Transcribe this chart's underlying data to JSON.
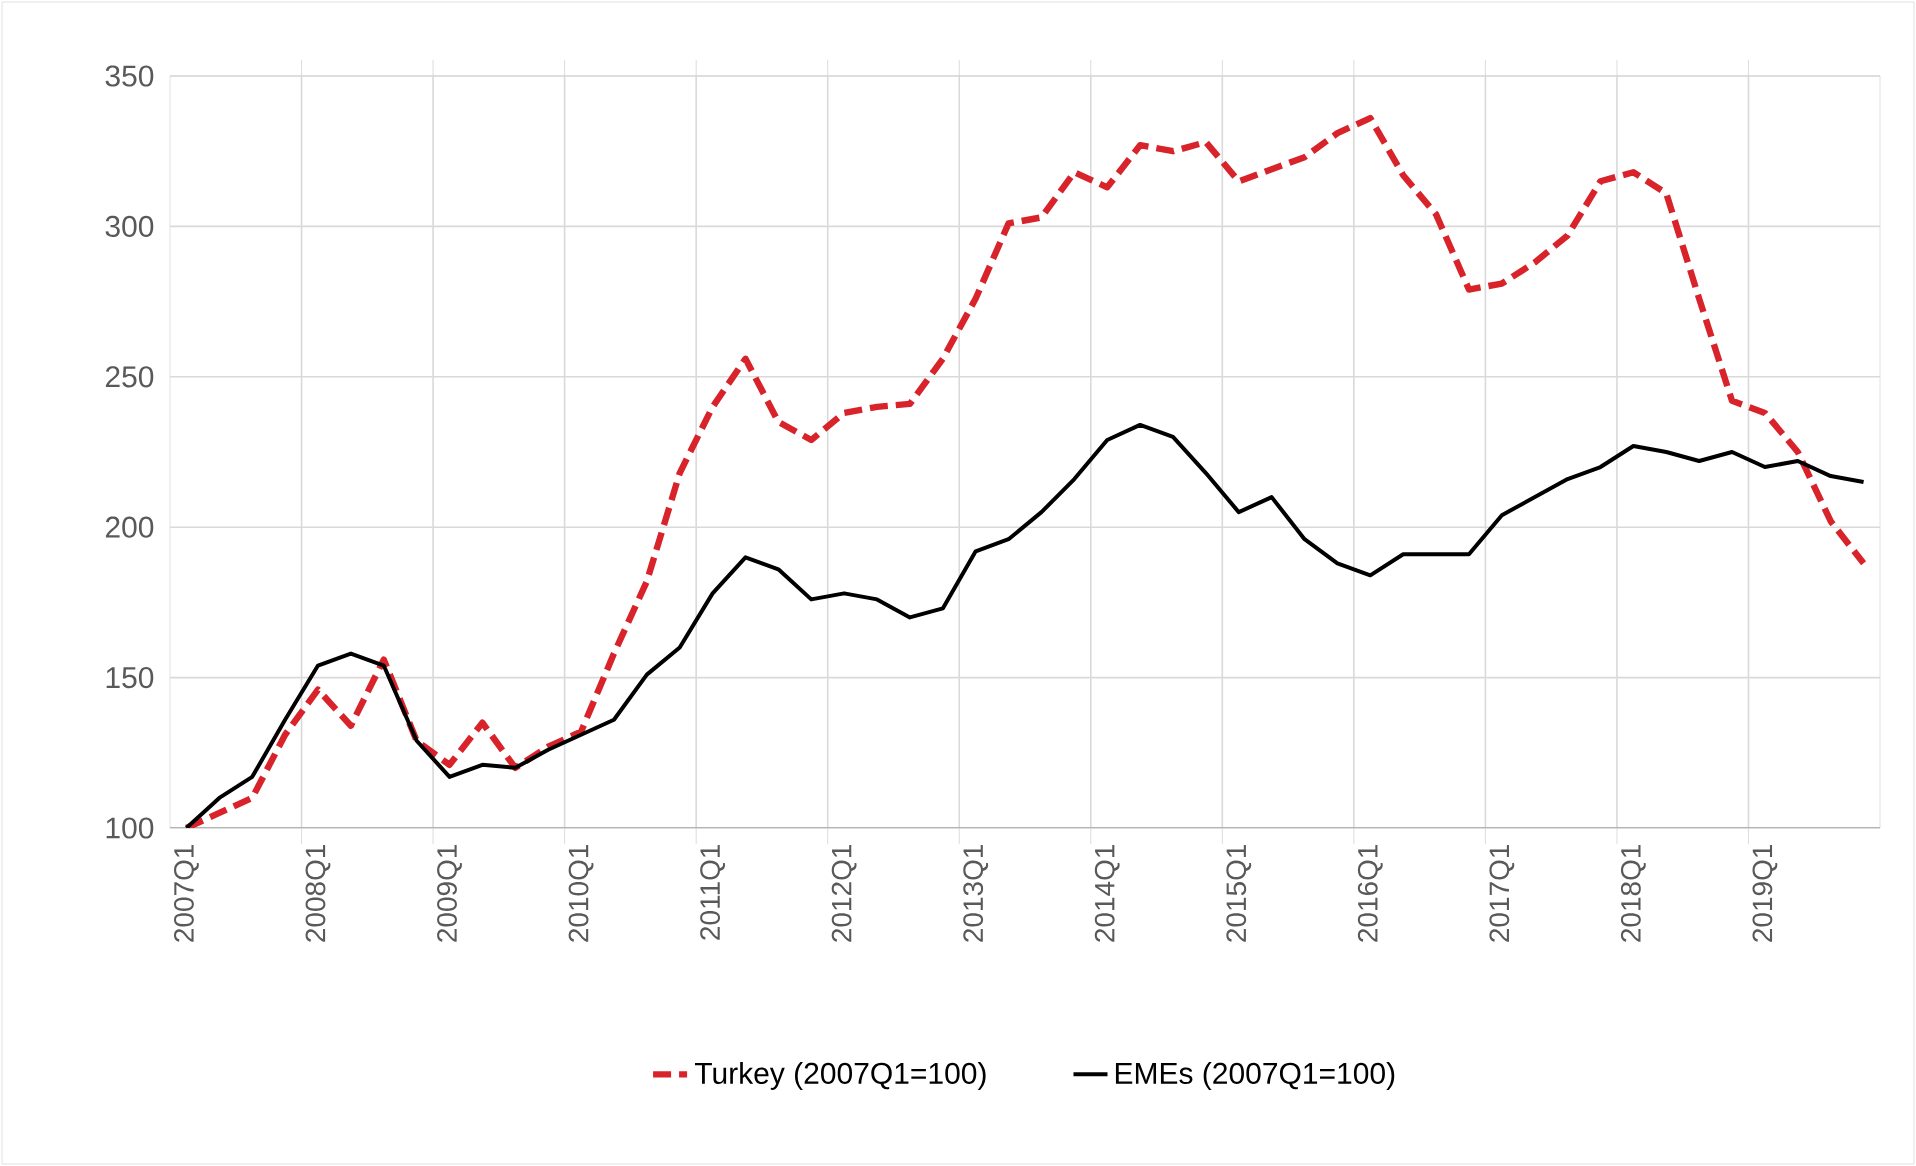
{
  "chart_data": {
    "type": "line",
    "categories": [
      "2007Q1",
      null,
      null,
      null,
      "2008Q1",
      null,
      null,
      null,
      "2009Q1",
      null,
      null,
      null,
      "2010Q1",
      null,
      null,
      null,
      "2011Q1",
      null,
      null,
      null,
      "2012Q1",
      null,
      null,
      null,
      "2013Q1",
      null,
      null,
      null,
      "2014Q1",
      null,
      null,
      null,
      "2015Q1",
      null,
      null,
      null,
      "2016Q1",
      null,
      null,
      null,
      "2017Q1",
      null,
      null,
      null,
      "2018Q1",
      null,
      null,
      null,
      "2019Q1",
      null,
      null,
      null
    ],
    "series": [
      {
        "name": "Turkey (2007Q1=100)",
        "color": "#d9232b",
        "line_style": "dashed",
        "values": [
          100,
          105,
          110,
          131,
          146,
          134,
          156,
          129,
          121,
          135,
          120,
          127,
          132,
          158,
          182,
          218,
          240,
          256,
          235,
          229,
          238,
          240,
          241,
          256,
          276,
          301,
          303,
          318,
          313,
          327,
          325,
          328,
          315,
          319,
          323,
          331,
          336,
          317,
          304,
          279,
          281,
          288,
          297,
          315,
          318,
          311,
          276,
          242,
          238,
          225,
          202,
          188
        ]
      },
      {
        "name": "EMEs (2007Q1=100)",
        "color": "#000000",
        "line_style": "solid",
        "values": [
          100,
          110,
          117,
          136,
          154,
          158,
          154,
          129,
          117,
          121,
          120,
          126,
          131,
          136,
          151,
          160,
          178,
          190,
          186,
          176,
          178,
          176,
          170,
          173,
          192,
          196,
          205,
          216,
          229,
          234,
          230,
          218,
          205,
          210,
          196,
          188,
          184,
          191,
          191,
          191,
          204,
          210,
          216,
          220,
          227,
          225,
          222,
          225,
          220,
          222,
          217,
          215
        ]
      }
    ],
    "ylim": [
      100,
      350
    ],
    "yticks": [
      100,
      150,
      200,
      250,
      300,
      350
    ],
    "grid": true,
    "legend": "bottom"
  }
}
